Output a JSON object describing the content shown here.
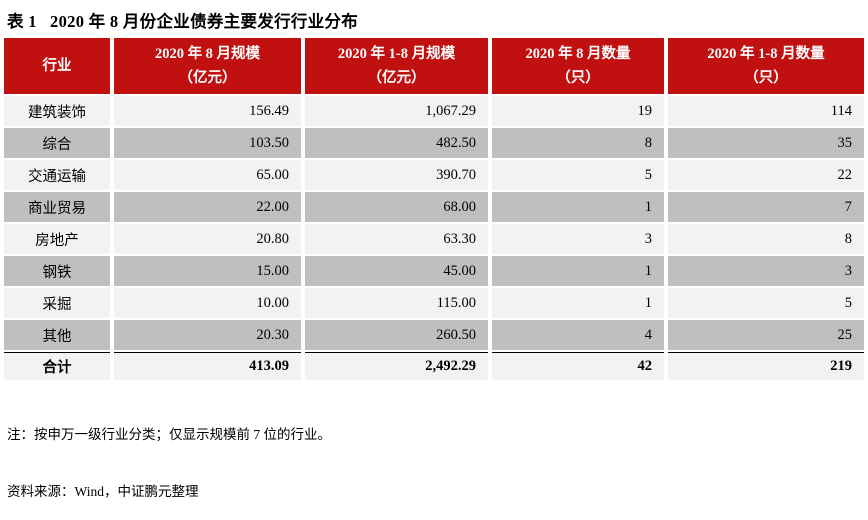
{
  "page": {
    "title": "表 1   2020 年 8 月份企业债券主要发行行业分布"
  },
  "table": {
    "header": {
      "industry": "行业",
      "cols": [
        {
          "line1": "2020 年 8 月规模",
          "line2": "（亿元）"
        },
        {
          "line1": "2020 年 1-8 月规模",
          "line2": "（亿元）"
        },
        {
          "line1": "2020 年 8 月数量",
          "line2": "（只）"
        },
        {
          "line1": "2020 年 1-8 月数量",
          "line2": "（只）"
        }
      ]
    },
    "rows": [
      [
        "建筑装饰",
        "156.49",
        "1,067.29",
        "19",
        "114"
      ],
      [
        "综合",
        "103.50",
        "482.50",
        "8",
        "35"
      ],
      [
        "交通运输",
        "65.00",
        "390.70",
        "5",
        "22"
      ],
      [
        "商业贸易",
        "22.00",
        "68.00",
        "1",
        "7"
      ],
      [
        "房地产",
        "20.80",
        "63.30",
        "3",
        "8"
      ],
      [
        "钢铁",
        "15.00",
        "45.00",
        "1",
        "3"
      ],
      [
        "采掘",
        "10.00",
        "115.00",
        "1",
        "5"
      ],
      [
        "其他",
        "20.30",
        "260.50",
        "4",
        "25"
      ]
    ],
    "total": [
      "合计",
      "413.09",
      "2,492.29",
      "42",
      "219"
    ]
  },
  "notes": {
    "line1": "注：按申万一级行业分类；仅显示规模前 7 位的行业。",
    "line2": "资料来源：Wind，中证鹏元整理"
  },
  "colors": {
    "header-bg": "#C01010",
    "header-text": "#FFFFFF",
    "row-light": "#F2F2F2",
    "row-dark": "#BFBFBF",
    "text": "#000000"
  }
}
